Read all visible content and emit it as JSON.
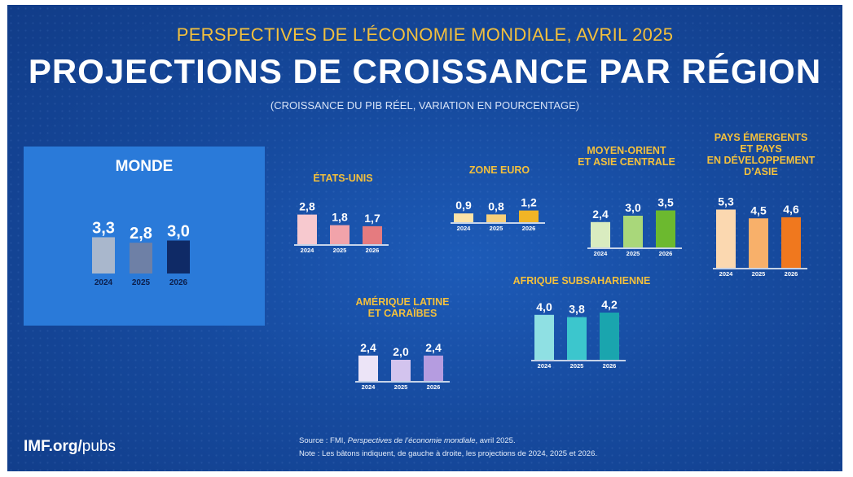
{
  "header": {
    "subtitle": "PERSPECTIVES DE L’ÉCONOMIE MONDIALE, AVRIL 2025",
    "title": "PROJECTIONS DE CROISSANCE PAR RÉGION",
    "units": "(CROISSANCE DU PIB RÉEL, VARIATION EN POURCENTAGE)"
  },
  "footer": {
    "brand_bold": "IMF.org/",
    "brand_rest": "pubs",
    "source_prefix": "Source : FMI, ",
    "source_italic": "Perspectives de l’économie mondiale",
    "source_suffix": ", avril 2025.",
    "note": "Note : Les bâtons indiquent, de gauche à droite, les projections de 2024, 2025 et 2026."
  },
  "colors": {
    "background": "#164a9e",
    "accent_yellow": "#f3c03d"
  },
  "chart_data": [
    {
      "type": "bar",
      "title": "MONDE",
      "categories": [
        "2024",
        "2025",
        "2026"
      ],
      "values": [
        3.3,
        2.8,
        3.0
      ],
      "labels": [
        "3,3",
        "2,8",
        "3,0"
      ],
      "colors": [
        "#a9b7cc",
        "#6e80a6",
        "#0f2a66"
      ]
    },
    {
      "type": "bar",
      "title": "ÉTATS-UNIS",
      "categories": [
        "2024",
        "2025",
        "2026"
      ],
      "values": [
        2.8,
        1.8,
        1.7
      ],
      "labels": [
        "2,8",
        "1,8",
        "1,7"
      ],
      "colors": [
        "#f7c9cf",
        "#f1a3aa",
        "#e57b7f"
      ]
    },
    {
      "type": "bar",
      "title": "ZONE EURO",
      "categories": [
        "2024",
        "2025",
        "2026"
      ],
      "values": [
        0.9,
        0.8,
        1.2
      ],
      "labels": [
        "0,9",
        "0,8",
        "1,2"
      ],
      "colors": [
        "#fbe3a8",
        "#f8d07a",
        "#f1b526"
      ]
    },
    {
      "type": "bar",
      "title": "MOYEN-ORIENT ET ASIE CENTRALE",
      "title_lines": [
        "MOYEN-ORIENT",
        "ET ASIE CENTRALE"
      ],
      "categories": [
        "2024",
        "2025",
        "2026"
      ],
      "values": [
        2.4,
        3.0,
        3.5
      ],
      "labels": [
        "2,4",
        "3,0",
        "3,5"
      ],
      "colors": [
        "#d9ecc0",
        "#a9d77a",
        "#6cb92f"
      ]
    },
    {
      "type": "bar",
      "title": "PAYS ÉMERGENTS ET PAYS EN DÉVELOPPEMENT D’ASIE",
      "title_lines": [
        "PAYS ÉMERGENTS",
        "ET PAYS",
        "EN DÉVELOPPEMENT",
        "D’ASIE"
      ],
      "categories": [
        "2024",
        "2025",
        "2026"
      ],
      "values": [
        5.3,
        4.5,
        4.6
      ],
      "labels": [
        "5,3",
        "4,5",
        "4,6"
      ],
      "colors": [
        "#fbd8b0",
        "#f8b06a",
        "#f0781e"
      ]
    },
    {
      "type": "bar",
      "title": "AMÉRIQUE LATINE ET CARAÏBES",
      "title_lines": [
        "AMÉRIQUE LATINE",
        "ET CARAÏBES"
      ],
      "categories": [
        "2024",
        "2025",
        "2026"
      ],
      "values": [
        2.4,
        2.0,
        2.4
      ],
      "labels": [
        "2,4",
        "2,0",
        "2,4"
      ],
      "colors": [
        "#ece4f7",
        "#d3c4ee",
        "#b59ce0"
      ]
    },
    {
      "type": "bar",
      "title": "AFRIQUE SUBSAHARIENNE",
      "categories": [
        "2024",
        "2025",
        "2026"
      ],
      "values": [
        4.0,
        3.8,
        4.2
      ],
      "labels": [
        "4,0",
        "3,8",
        "4,2"
      ],
      "colors": [
        "#8fe0e3",
        "#3cc6cd",
        "#1aa5ae"
      ]
    }
  ]
}
